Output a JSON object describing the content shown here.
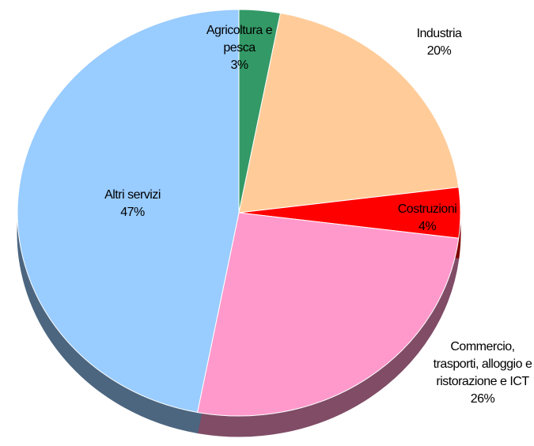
{
  "chart_data": {
    "type": "pie",
    "categories": [
      "Agricoltura e pesca",
      "Industria",
      "Costruzioni",
      "Commercio, trasporti, alloggio e ristorazione e ICT",
      "Altri servizi"
    ],
    "values": [
      3,
      20,
      4,
      26,
      47
    ],
    "value_labels": [
      "3%",
      "20%",
      "4%",
      "26%",
      "47%"
    ],
    "colors": [
      "#339966",
      "#ffcc99",
      "#ff0000",
      "#ff99cc",
      "#99ccff"
    ]
  }
}
